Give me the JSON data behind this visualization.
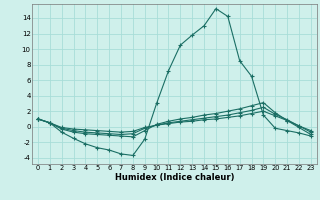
{
  "xlabel": "Humidex (Indice chaleur)",
  "bg_color": "#cff0eb",
  "grid_color": "#a8ddd8",
  "line_color": "#1a6e64",
  "xlim": [
    -0.5,
    23.5
  ],
  "ylim": [
    -4.8,
    15.8
  ],
  "xticks": [
    0,
    1,
    2,
    3,
    4,
    5,
    6,
    7,
    8,
    9,
    10,
    11,
    12,
    13,
    14,
    15,
    16,
    17,
    18,
    19,
    20,
    21,
    22,
    23
  ],
  "yticks": [
    -4,
    -2,
    0,
    2,
    4,
    6,
    8,
    10,
    12,
    14
  ],
  "series": [
    {
      "x": [
        0,
        1,
        2,
        3,
        4,
        5,
        6,
        7,
        8,
        9,
        10,
        11,
        12,
        13,
        14,
        15,
        16,
        17,
        18,
        19,
        20,
        21,
        22,
        23
      ],
      "y": [
        1.0,
        0.5,
        -0.7,
        -1.5,
        -2.2,
        -2.7,
        -3.0,
        -3.5,
        -3.7,
        -1.6,
        3.0,
        7.2,
        10.5,
        11.8,
        13.0,
        15.2,
        14.2,
        8.5,
        6.5,
        1.5,
        -0.2,
        -0.5,
        -0.8,
        -1.2
      ]
    },
    {
      "x": [
        0,
        1,
        2,
        3,
        4,
        5,
        6,
        7,
        8,
        9,
        10,
        11,
        12,
        13,
        14,
        15,
        16,
        17,
        18,
        19,
        20,
        21,
        22,
        23
      ],
      "y": [
        1.0,
        0.5,
        -0.3,
        -0.7,
        -0.9,
        -1.0,
        -1.1,
        -1.2,
        -1.3,
        -0.5,
        0.3,
        0.7,
        1.0,
        1.2,
        1.5,
        1.7,
        2.0,
        2.3,
        2.7,
        3.1,
        1.8,
        0.8,
        -0.1,
        -1.0
      ]
    },
    {
      "x": [
        0,
        1,
        2,
        3,
        4,
        5,
        6,
        7,
        8,
        9,
        10,
        11,
        12,
        13,
        14,
        15,
        16,
        17,
        18,
        19,
        20,
        21,
        22,
        23
      ],
      "y": [
        1.0,
        0.5,
        -0.2,
        -0.5,
        -0.7,
        -0.8,
        -0.9,
        -1.0,
        -0.9,
        -0.2,
        0.2,
        0.5,
        0.7,
        0.9,
        1.1,
        1.3,
        1.5,
        1.8,
        2.1,
        2.5,
        1.6,
        0.9,
        0.1,
        -0.7
      ]
    },
    {
      "x": [
        0,
        1,
        2,
        3,
        4,
        5,
        6,
        7,
        8,
        9,
        10,
        11,
        12,
        13,
        14,
        15,
        16,
        17,
        18,
        19,
        20,
        21,
        22,
        23
      ],
      "y": [
        1.0,
        0.5,
        -0.1,
        -0.3,
        -0.4,
        -0.5,
        -0.6,
        -0.7,
        -0.6,
        -0.1,
        0.2,
        0.4,
        0.6,
        0.7,
        0.9,
        1.0,
        1.2,
        1.4,
        1.7,
        2.0,
        1.4,
        0.8,
        0.1,
        -0.5
      ]
    }
  ]
}
